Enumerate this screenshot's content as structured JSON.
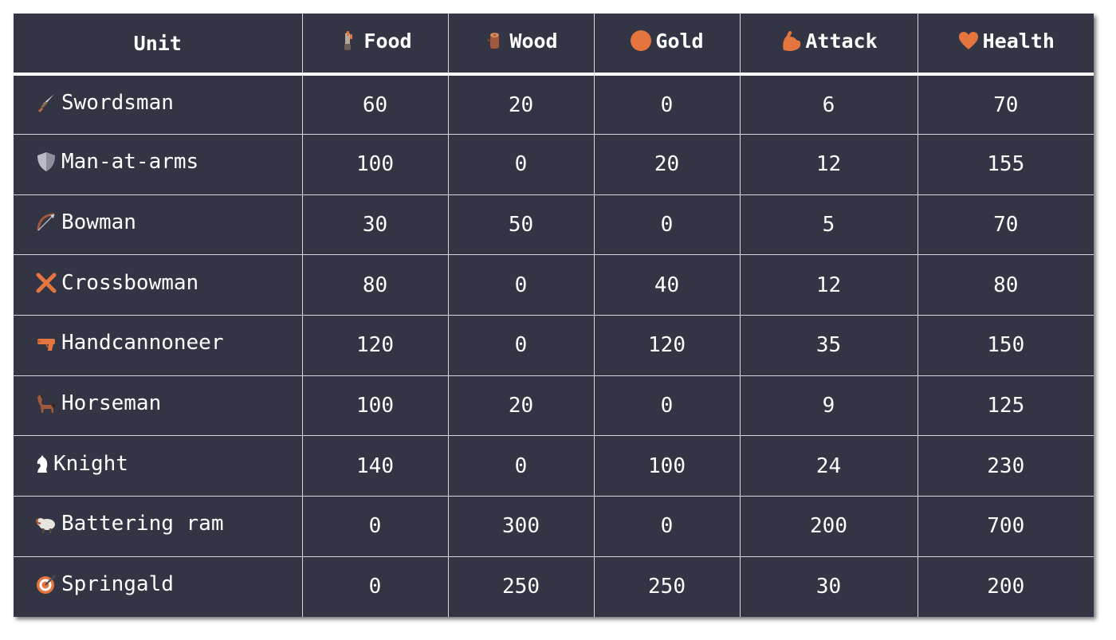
{
  "table": {
    "headers": [
      {
        "label": "Unit",
        "icon": ""
      },
      {
        "label": "Food",
        "icon": "meat-on-bone-icon"
      },
      {
        "label": "Wood",
        "icon": "wood-log-icon"
      },
      {
        "label": "Gold",
        "icon": "orange-circle-icon"
      },
      {
        "label": "Attack",
        "icon": "flexed-biceps-icon"
      },
      {
        "label": "Health",
        "icon": "heart-icon"
      }
    ],
    "rows": [
      {
        "unit": "Swordsman",
        "icon": "dagger-icon",
        "food": "60",
        "wood": "20",
        "gold": "0",
        "attack": "6",
        "health": "70"
      },
      {
        "unit": "Man-at-arms",
        "icon": "shield-icon",
        "food": "100",
        "wood": "0",
        "gold": "20",
        "attack": "12",
        "health": "155"
      },
      {
        "unit": "Bowman",
        "icon": "bow-and-arrow-icon",
        "food": "30",
        "wood": "50",
        "gold": "0",
        "attack": "5",
        "health": "70"
      },
      {
        "unit": "Crossbowman",
        "icon": "cross-mark-icon",
        "food": "80",
        "wood": "0",
        "gold": "40",
        "attack": "12",
        "health": "80"
      },
      {
        "unit": "Handcannoneer",
        "icon": "pistol-icon",
        "food": "120",
        "wood": "0",
        "gold": "120",
        "attack": "35",
        "health": "150"
      },
      {
        "unit": "Horseman",
        "icon": "horse-icon",
        "food": "100",
        "wood": "20",
        "gold": "0",
        "attack": "9",
        "health": "125"
      },
      {
        "unit": "Knight",
        "icon": "chess-knight-icon",
        "food": "140",
        "wood": "0",
        "gold": "100",
        "attack": "24",
        "health": "230"
      },
      {
        "unit": "Battering ram",
        "icon": "ram-icon",
        "food": "0",
        "wood": "300",
        "gold": "0",
        "attack": "200",
        "health": "700"
      },
      {
        "unit": "Springald",
        "icon": "direct-hit-icon",
        "food": "0",
        "wood": "250",
        "gold": "250",
        "attack": "30",
        "health": "200"
      }
    ]
  },
  "colors": {
    "background": "#333545",
    "text": "#ffffff",
    "grid": "#d7d8de",
    "accent_orange": "#e4753f"
  }
}
